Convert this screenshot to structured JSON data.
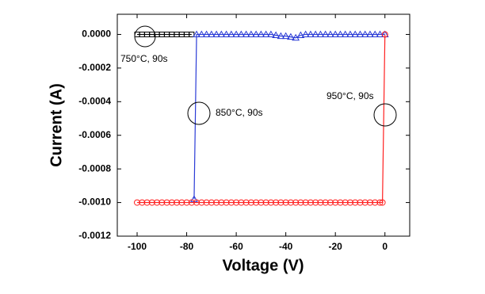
{
  "chart_data": {
    "type": "line",
    "x_label": "Voltage (V)",
    "y_label": "Current (A)",
    "xlim": [
      -108,
      10
    ],
    "ylim": [
      -0.0012,
      0.00012
    ],
    "xticks": [
      -100,
      -80,
      -60,
      -40,
      -20,
      0
    ],
    "yticks": [
      {
        "value": 0,
        "label": "0.0000"
      },
      {
        "value": -0.0002,
        "label": "-0.0002"
      },
      {
        "value": -0.0004,
        "label": "-0.0004"
      },
      {
        "value": -0.0006,
        "label": "-0.0006"
      },
      {
        "value": -0.0008,
        "label": "-0.0008"
      },
      {
        "value": -0.001,
        "label": "-0.0010"
      },
      {
        "value": -0.0012,
        "label": "-0.0012"
      }
    ],
    "annotations": [
      "750°C, 90s",
      "850°C, 90s",
      "950°C, 90s"
    ],
    "series": [
      {
        "color": "#000000",
        "marker": "square",
        "x": [
          -100,
          -98,
          -96,
          -94,
          -92,
          -90,
          -88,
          -86,
          -84,
          -82,
          -80,
          -78
        ],
        "values": [
          0,
          0,
          0,
          0,
          0,
          0,
          0,
          0,
          0,
          0,
          0,
          0
        ]
      },
      {
        "color": "#2a3bd6",
        "marker": "triangle",
        "x": [
          -77,
          -76,
          -74,
          -72,
          -70,
          -68,
          -66,
          -64,
          -62,
          -60,
          -58,
          -56,
          -54,
          -52,
          -50,
          -48,
          -46,
          -44,
          -42,
          -40,
          -38,
          -36,
          -34,
          -32,
          -30,
          -28,
          -26,
          -24,
          -22,
          -20,
          -18,
          -16,
          -14,
          -12,
          -10,
          -8,
          -6,
          -4,
          -2,
          0
        ],
        "values": [
          -0.00098,
          0,
          0,
          0,
          0,
          0,
          0,
          0,
          0,
          0,
          0,
          0,
          0,
          0,
          0,
          0,
          0,
          -5e-06,
          -1e-05,
          -1e-05,
          -1.5e-05,
          -2e-05,
          -5e-06,
          0,
          0,
          0,
          0,
          0,
          0,
          0,
          0,
          0,
          0,
          0,
          0,
          0,
          0,
          0,
          0,
          0
        ]
      },
      {
        "color": "#ff2020",
        "marker": "circle",
        "x": [
          -100,
          -98,
          -96,
          -94,
          -92,
          -90,
          -88,
          -86,
          -84,
          -82,
          -80,
          -78,
          -76,
          -74,
          -72,
          -70,
          -68,
          -66,
          -64,
          -62,
          -60,
          -58,
          -56,
          -54,
          -52,
          -50,
          -48,
          -46,
          -44,
          -42,
          -40,
          -38,
          -36,
          -34,
          -32,
          -30,
          -28,
          -26,
          -24,
          -22,
          -20,
          -18,
          -16,
          -14,
          -12,
          -10,
          -8,
          -6,
          -4,
          -2,
          -1,
          0
        ],
        "values": [
          -0.001,
          -0.001,
          -0.001,
          -0.001,
          -0.001,
          -0.001,
          -0.001,
          -0.001,
          -0.001,
          -0.001,
          -0.001,
          -0.001,
          -0.001,
          -0.001,
          -0.001,
          -0.001,
          -0.001,
          -0.001,
          -0.001,
          -0.001,
          -0.001,
          -0.001,
          -0.001,
          -0.001,
          -0.001,
          -0.001,
          -0.001,
          -0.001,
          -0.001,
          -0.001,
          -0.001,
          -0.001,
          -0.001,
          -0.001,
          -0.001,
          -0.001,
          -0.001,
          -0.001,
          -0.001,
          -0.001,
          -0.001,
          -0.001,
          -0.001,
          -0.001,
          -0.001,
          -0.001,
          -0.001,
          -0.001,
          -0.001,
          -0.001,
          -0.001,
          0
        ]
      }
    ]
  }
}
